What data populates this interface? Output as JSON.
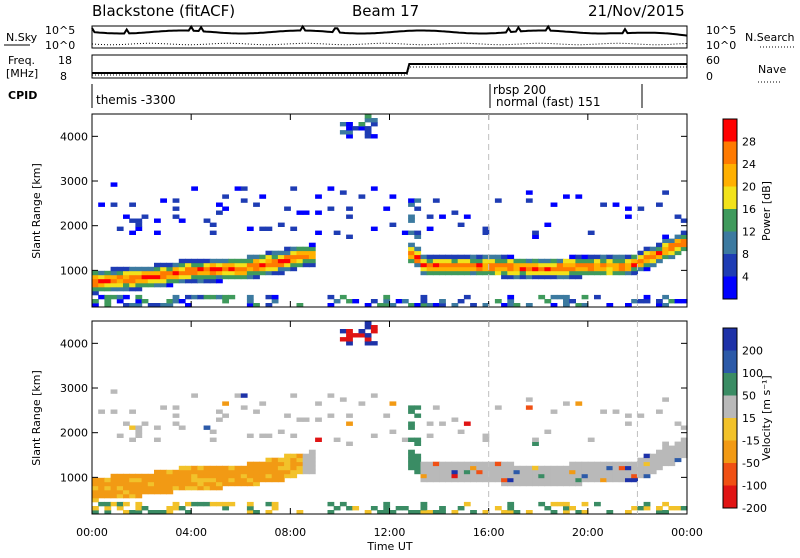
{
  "header": {
    "title": "Blackstone (fitACF)",
    "beam": "Beam 17",
    "date": "21/Nov/2015"
  },
  "params_panel": {
    "nsky_label": "N.Sky",
    "nsky_ticks": [
      "10^5",
      "10^0"
    ],
    "nsearch_label": "N.Search",
    "nsearch_ticks": [
      "10^5",
      "10^0"
    ],
    "freq_label_line1": "Freq.",
    "freq_label_line2": "[MHz]",
    "freq_ticks": [
      "18",
      "8"
    ],
    "nave_label": "Nave",
    "nave_ticks": [
      "60",
      "0"
    ],
    "cpid_label": "CPID",
    "modes": [
      {
        "text": "themis -3300"
      },
      {
        "text": "rbsp 200"
      },
      {
        "text": "normal (fast) 151"
      }
    ]
  },
  "chart_data": [
    {
      "type": "heatmap",
      "panel": "power",
      "ylabel": "Slant Range [km]",
      "xlabel": "",
      "ylim": [
        180,
        4500
      ],
      "xlim": [
        0,
        24
      ],
      "yticks": [
        "1000",
        "2000",
        "3000",
        "4000"
      ],
      "colorbar": {
        "label": "Power [dB]",
        "ticks": [
          "28",
          "24",
          "20",
          "16",
          "12",
          "8",
          "4"
        ],
        "colors": [
          "#ff0000",
          "#ff7a00",
          "#ffb000",
          "#f2e21a",
          "#3f9a5c",
          "#3c7aa0",
          "#1e3cb4",
          "#0000ff"
        ]
      },
      "features": {
        "band_center_km": [
          [
            0,
            700
          ],
          [
            2,
            800
          ],
          [
            4,
            950
          ],
          [
            6,
            1000
          ],
          [
            7.5,
            1150
          ],
          [
            8.5,
            1300
          ],
          [
            12.8,
            1350
          ],
          [
            13.3,
            1050
          ],
          [
            16,
            1050
          ],
          [
            18,
            1000
          ],
          [
            20,
            1050
          ],
          [
            21.5,
            1050
          ],
          [
            22,
            1150
          ],
          [
            24,
            1650
          ]
        ],
        "band_gap_hours": [
          8.8,
          12.6
        ]
      }
    },
    {
      "type": "heatmap",
      "panel": "velocity",
      "ylabel": "Slant Range [km]",
      "xlabel": "Time UT",
      "ylim": [
        180,
        4500
      ],
      "xlim": [
        0,
        24
      ],
      "yticks": [
        "1000",
        "2000",
        "3000",
        "4000"
      ],
      "xticks": [
        "00:00",
        "04:00",
        "08:00",
        "12:00",
        "16:00",
        "20:00",
        "00:00"
      ],
      "colorbar": {
        "label": "Velocity [m s⁻¹]",
        "ticks": [
          "200",
          "100",
          "50",
          "15",
          "-15",
          "-50",
          "-100",
          "-200"
        ],
        "colors": [
          "#1e32a8",
          "#2c5aa8",
          "#3a8c64",
          "#b9b9b9",
          "#f2c22a",
          "#f29a14",
          "#f05014",
          "#e01414"
        ]
      },
      "features": {
        "early_flow": "-50",
        "late_flow": "15"
      }
    }
  ],
  "dashed_markers": [
    "16:00",
    "22:00"
  ]
}
